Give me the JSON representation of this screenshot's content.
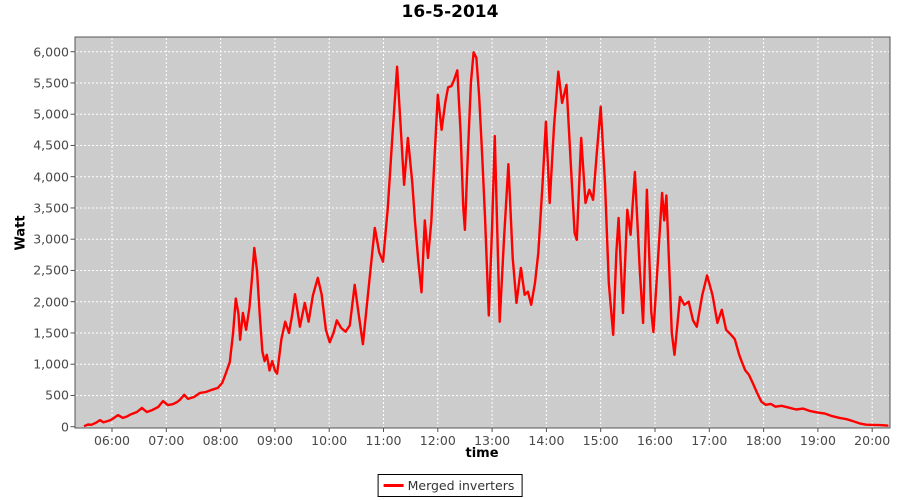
{
  "title": "16-5-2014",
  "axes": {
    "x": {
      "label": "time",
      "ticks": [
        "06:00",
        "07:00",
        "08:00",
        "09:00",
        "10:00",
        "11:00",
        "12:00",
        "13:00",
        "14:00",
        "15:00",
        "16:00",
        "17:00",
        "18:00",
        "19:00",
        "20:00"
      ]
    },
    "y": {
      "label": "Watt",
      "ticks": [
        "0",
        "500",
        "1,000",
        "1,500",
        "2,000",
        "2,500",
        "3,000",
        "3,500",
        "4,000",
        "4,500",
        "5,000",
        "5,500",
        "6,000"
      ]
    }
  },
  "legend": {
    "items": [
      {
        "label": "Merged inverters",
        "color": "#ff0000"
      }
    ]
  },
  "colors": {
    "outer_bg": "#ffffff",
    "plot_bg": "#cccccc",
    "grid": "#ffffff",
    "plot_border": "#545454",
    "tick_text": "#494949",
    "line": "#ff0000"
  },
  "chart_data": {
    "type": "line",
    "title": "16-5-2014",
    "xlabel": "time",
    "ylabel": "Watt",
    "x_unit": "decimal hours",
    "x_tick_hours": [
      6,
      7,
      8,
      9,
      10,
      11,
      12,
      13,
      14,
      15,
      16,
      17,
      18,
      19,
      20
    ],
    "ylim": [
      0,
      6000
    ],
    "y_tick_step": 500,
    "grid": "white dashed on gray plot background",
    "legend_position": "bottom-center",
    "series": [
      {
        "name": "Merged inverters",
        "color": "#ff0000",
        "points_hour_watt": [
          [
            5.5,
            15
          ],
          [
            5.56,
            35
          ],
          [
            5.62,
            30
          ],
          [
            5.7,
            60
          ],
          [
            5.78,
            105
          ],
          [
            5.84,
            70
          ],
          [
            5.9,
            85
          ],
          [
            5.96,
            100
          ],
          [
            6.0,
            120
          ],
          [
            6.11,
            185
          ],
          [
            6.2,
            140
          ],
          [
            6.28,
            165
          ],
          [
            6.33,
            190
          ],
          [
            6.4,
            215
          ],
          [
            6.46,
            235
          ],
          [
            6.55,
            300
          ],
          [
            6.64,
            235
          ],
          [
            6.74,
            265
          ],
          [
            6.85,
            315
          ],
          [
            6.94,
            410
          ],
          [
            7.03,
            345
          ],
          [
            7.12,
            360
          ],
          [
            7.2,
            395
          ],
          [
            7.25,
            430
          ],
          [
            7.33,
            510
          ],
          [
            7.4,
            445
          ],
          [
            7.51,
            475
          ],
          [
            7.62,
            540
          ],
          [
            7.73,
            555
          ],
          [
            7.84,
            590
          ],
          [
            7.95,
            620
          ],
          [
            8.03,
            700
          ],
          [
            8.1,
            860
          ],
          [
            8.17,
            1035
          ],
          [
            8.23,
            1500
          ],
          [
            8.28,
            2050
          ],
          [
            8.33,
            1800
          ],
          [
            8.36,
            1390
          ],
          [
            8.41,
            1820
          ],
          [
            8.47,
            1550
          ],
          [
            8.53,
            1900
          ],
          [
            8.58,
            2400
          ],
          [
            8.62,
            2860
          ],
          [
            8.67,
            2500
          ],
          [
            8.72,
            1800
          ],
          [
            8.77,
            1200
          ],
          [
            8.81,
            1050
          ],
          [
            8.85,
            1150
          ],
          [
            8.9,
            900
          ],
          [
            8.95,
            1050
          ],
          [
            9.0,
            900
          ],
          [
            9.04,
            850
          ],
          [
            9.12,
            1400
          ],
          [
            9.19,
            1680
          ],
          [
            9.26,
            1500
          ],
          [
            9.32,
            1800
          ],
          [
            9.37,
            2120
          ],
          [
            9.46,
            1600
          ],
          [
            9.55,
            1980
          ],
          [
            9.62,
            1680
          ],
          [
            9.7,
            2100
          ],
          [
            9.79,
            2380
          ],
          [
            9.86,
            2120
          ],
          [
            9.94,
            1550
          ],
          [
            10.01,
            1350
          ],
          [
            10.08,
            1500
          ],
          [
            10.14,
            1700
          ],
          [
            10.22,
            1580
          ],
          [
            10.3,
            1520
          ],
          [
            10.38,
            1620
          ],
          [
            10.47,
            2270
          ],
          [
            10.55,
            1750
          ],
          [
            10.62,
            1320
          ],
          [
            10.73,
            2250
          ],
          [
            10.84,
            3180
          ],
          [
            10.92,
            2790
          ],
          [
            10.99,
            2640
          ],
          [
            11.08,
            3500
          ],
          [
            11.16,
            4600
          ],
          [
            11.25,
            5760
          ],
          [
            11.33,
            4600
          ],
          [
            11.38,
            3870
          ],
          [
            11.45,
            4620
          ],
          [
            11.53,
            3900
          ],
          [
            11.58,
            3280
          ],
          [
            11.64,
            2650
          ],
          [
            11.7,
            2150
          ],
          [
            11.76,
            3300
          ],
          [
            11.82,
            2700
          ],
          [
            11.88,
            3280
          ],
          [
            11.94,
            4300
          ],
          [
            12.0,
            5310
          ],
          [
            12.07,
            4750
          ],
          [
            12.14,
            5200
          ],
          [
            12.19,
            5430
          ],
          [
            12.25,
            5450
          ],
          [
            12.3,
            5550
          ],
          [
            12.36,
            5700
          ],
          [
            12.42,
            4700
          ],
          [
            12.47,
            3500
          ],
          [
            12.5,
            3150
          ],
          [
            12.55,
            4300
          ],
          [
            12.61,
            5500
          ],
          [
            12.66,
            5990
          ],
          [
            12.71,
            5900
          ],
          [
            12.76,
            5300
          ],
          [
            12.82,
            4300
          ],
          [
            12.87,
            3360
          ],
          [
            12.94,
            1780
          ],
          [
            13.0,
            3200
          ],
          [
            13.05,
            4650
          ],
          [
            13.1,
            3000
          ],
          [
            13.14,
            1680
          ],
          [
            13.22,
            3000
          ],
          [
            13.3,
            4200
          ],
          [
            13.38,
            2700
          ],
          [
            13.45,
            1980
          ],
          [
            13.53,
            2540
          ],
          [
            13.6,
            2110
          ],
          [
            13.66,
            2160
          ],
          [
            13.72,
            1950
          ],
          [
            13.79,
            2300
          ],
          [
            13.85,
            2780
          ],
          [
            13.93,
            3900
          ],
          [
            13.99,
            4880
          ],
          [
            14.06,
            3580
          ],
          [
            14.14,
            4800
          ],
          [
            14.22,
            5680
          ],
          [
            14.29,
            5180
          ],
          [
            14.37,
            5470
          ],
          [
            14.45,
            4200
          ],
          [
            14.52,
            3100
          ],
          [
            14.56,
            2990
          ],
          [
            14.64,
            4620
          ],
          [
            14.72,
            3580
          ],
          [
            14.79,
            3790
          ],
          [
            14.86,
            3630
          ],
          [
            14.93,
            4400
          ],
          [
            15.0,
            5120
          ],
          [
            15.08,
            3900
          ],
          [
            15.15,
            2300
          ],
          [
            15.23,
            1470
          ],
          [
            15.29,
            2800
          ],
          [
            15.33,
            3340
          ],
          [
            15.41,
            1820
          ],
          [
            15.49,
            3470
          ],
          [
            15.55,
            3070
          ],
          [
            15.63,
            4075
          ],
          [
            15.72,
            2500
          ],
          [
            15.78,
            1660
          ],
          [
            15.85,
            3790
          ],
          [
            15.93,
            1850
          ],
          [
            15.97,
            1515
          ],
          [
            16.05,
            2600
          ],
          [
            16.13,
            3740
          ],
          [
            16.17,
            3300
          ],
          [
            16.21,
            3700
          ],
          [
            16.31,
            1500
          ],
          [
            16.36,
            1150
          ],
          [
            16.46,
            2075
          ],
          [
            16.54,
            1950
          ],
          [
            16.62,
            2000
          ],
          [
            16.7,
            1700
          ],
          [
            16.77,
            1600
          ],
          [
            16.87,
            2100
          ],
          [
            16.96,
            2420
          ],
          [
            17.06,
            2100
          ],
          [
            17.15,
            1660
          ],
          [
            17.23,
            1870
          ],
          [
            17.31,
            1550
          ],
          [
            17.39,
            1480
          ],
          [
            17.47,
            1400
          ],
          [
            17.55,
            1150
          ],
          [
            17.6,
            1035
          ],
          [
            17.66,
            905
          ],
          [
            17.73,
            830
          ],
          [
            17.8,
            700
          ],
          [
            17.88,
            540
          ],
          [
            17.96,
            400
          ],
          [
            18.04,
            350
          ],
          [
            18.13,
            365
          ],
          [
            18.22,
            320
          ],
          [
            18.33,
            335
          ],
          [
            18.46,
            305
          ],
          [
            18.6,
            275
          ],
          [
            18.73,
            290
          ],
          [
            18.86,
            250
          ],
          [
            19.0,
            225
          ],
          [
            19.13,
            210
          ],
          [
            19.26,
            170
          ],
          [
            19.4,
            140
          ],
          [
            19.53,
            120
          ],
          [
            19.66,
            85
          ],
          [
            19.78,
            50
          ],
          [
            19.89,
            32
          ],
          [
            20.01,
            28
          ],
          [
            20.14,
            25
          ],
          [
            20.28,
            18
          ]
        ]
      }
    ]
  }
}
